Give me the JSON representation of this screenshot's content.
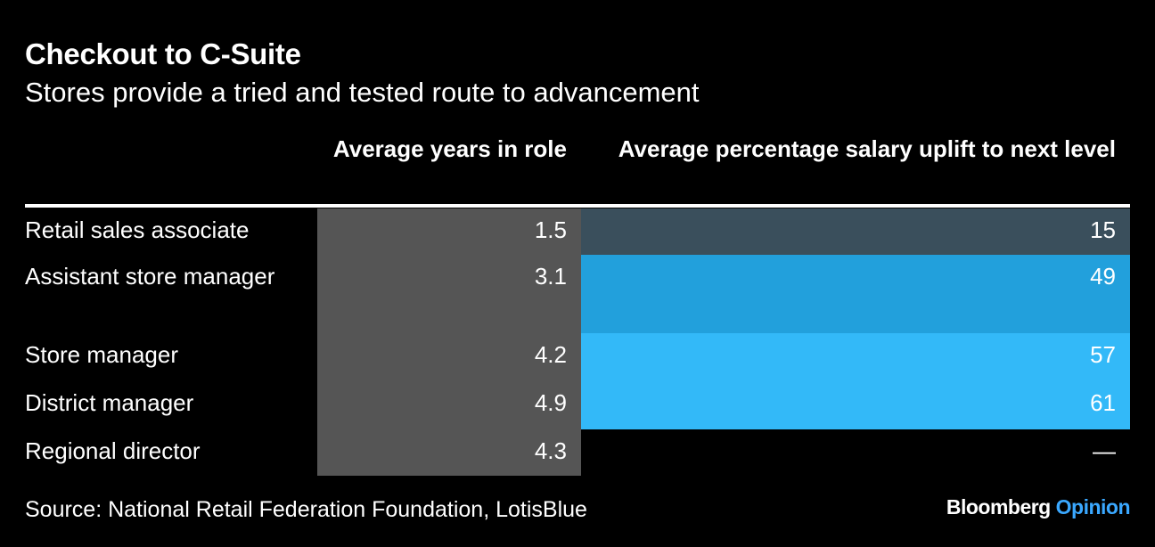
{
  "title": "Checkout to C-Suite",
  "subtitle": "Stores provide a tried and tested route to advancement",
  "columns": {
    "years": "Average years in role",
    "uplift": "Average percentage salary uplift to next level"
  },
  "rows": [
    {
      "label": "Retail sales associate",
      "years": "1.5",
      "uplift": "15"
    },
    {
      "label": "Assistant store manager",
      "years": "3.1",
      "uplift": "49"
    },
    {
      "label": "Store manager",
      "years": "4.2",
      "uplift": "57"
    },
    {
      "label": "District manager",
      "years": "4.9",
      "uplift": "61"
    },
    {
      "label": "Regional director",
      "years": "4.3",
      "uplift": "—"
    }
  ],
  "source": "Source: National Retail Federation Foundation, LotisBlue",
  "logo": {
    "brand": "Bloomberg",
    "section": "Opinion"
  },
  "colors": {
    "background": "#000000",
    "years_fill": "#555555",
    "uplift_fill_15": "#3a4f5c",
    "uplift_fill_49": "#22a0dc",
    "uplift_fill_57": "#33b9f8",
    "uplift_fill_61": "#33b9f8",
    "logo_accent": "#3aa8ff"
  },
  "chart_data": {
    "type": "table",
    "title": "Checkout to C-Suite",
    "subtitle": "Stores provide a tried and tested route to advancement",
    "columns": [
      "Average years in role",
      "Average percentage salary uplift to next level"
    ],
    "categories": [
      "Retail sales associate",
      "Assistant store manager",
      "Store manager",
      "District manager",
      "Regional director"
    ],
    "series": [
      {
        "name": "Average years in role",
        "values": [
          1.5,
          3.1,
          4.2,
          4.9,
          4.3
        ]
      },
      {
        "name": "Average percentage salary uplift to next level",
        "values": [
          15,
          49,
          57,
          61,
          null
        ]
      }
    ]
  }
}
